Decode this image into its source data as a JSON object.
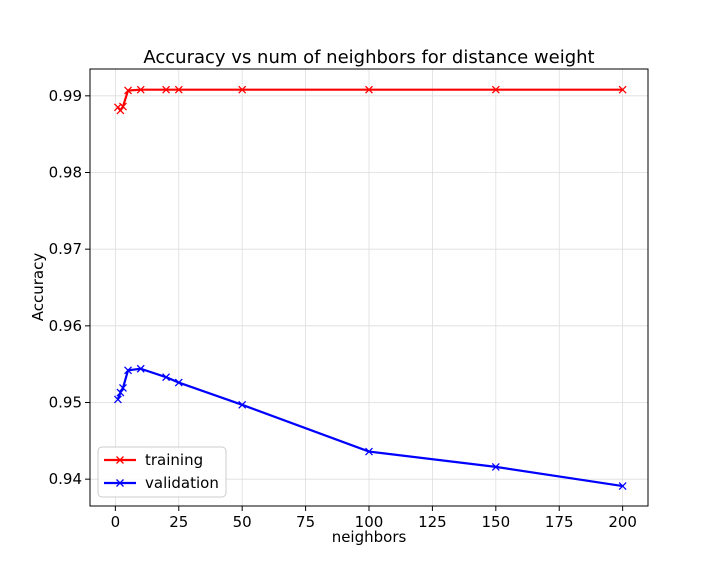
{
  "chart_data": {
    "type": "line",
    "title": "Accuracy vs num of neighbors for distance weight",
    "xlabel": "neighbors",
    "ylabel": "Accuracy",
    "xlim": [
      -10,
      210
    ],
    "ylim": [
      0.9365,
      0.9935
    ],
    "xticks": [
      0,
      25,
      50,
      75,
      100,
      125,
      150,
      175,
      200
    ],
    "yticks": [
      0.94,
      0.95,
      0.96,
      0.97,
      0.98,
      0.99
    ],
    "xtick_labels": [
      "0",
      "25",
      "50",
      "75",
      "100",
      "125",
      "150",
      "175",
      "200"
    ],
    "ytick_labels": [
      "0.94",
      "0.95",
      "0.96",
      "0.97",
      "0.98",
      "0.99"
    ],
    "grid": true,
    "legend_position": "lower-left",
    "x": [
      1,
      2,
      3,
      5,
      10,
      20,
      25,
      50,
      100,
      150,
      200
    ],
    "series": [
      {
        "name": "training",
        "color": "#ff0000",
        "marker": "x",
        "values": [
          0.9885,
          0.9881,
          0.9886,
          0.9907,
          0.9908,
          0.9908,
          0.9908,
          0.9908,
          0.9908,
          0.9908,
          0.9908
        ]
      },
      {
        "name": "validation",
        "color": "#0000ff",
        "marker": "x",
        "values": [
          0.9504,
          0.9513,
          0.9519,
          0.9542,
          0.9544,
          0.9533,
          0.9526,
          0.9497,
          0.9436,
          0.9416,
          0.9391
        ]
      }
    ]
  }
}
